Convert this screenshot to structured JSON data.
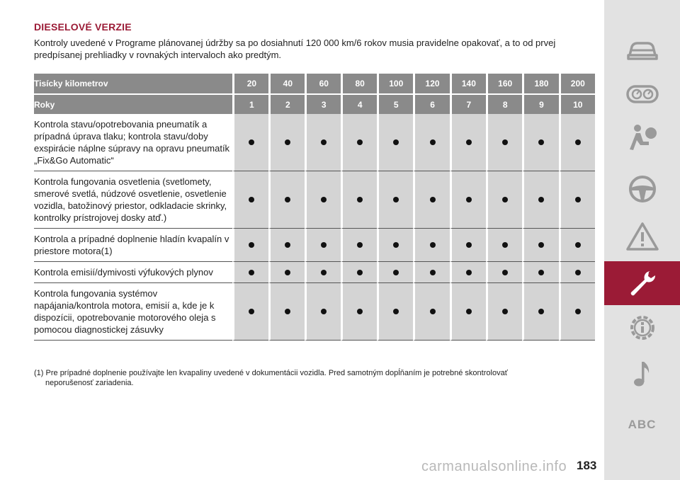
{
  "section_title": "DIESELOVÉ VERZIE",
  "intro_text": "Kontroly uvedené v Programe plánovanej údržby sa po dosiahnutí 120 000 km/6 rokov musia pravidelne opakovať, a to od prvej predpísanej prehliadky v rovnakých intervaloch ako predtým.",
  "table": {
    "header_km_label": "Tisícky kilometrov",
    "km": [
      "20",
      "40",
      "60",
      "80",
      "100",
      "120",
      "140",
      "160",
      "180",
      "200"
    ],
    "header_years_label": "Roky",
    "years": [
      "1",
      "2",
      "3",
      "4",
      "5",
      "6",
      "7",
      "8",
      "9",
      "10"
    ],
    "rows": [
      {
        "label": "Kontrola stavu/opotrebovania pneumatík a prípadná úprava tlaku; kontrola stavu/doby exspirácie náplne súpravy na opravu pneumatík „Fix&Go Automatic“",
        "marks": [
          true,
          true,
          true,
          true,
          true,
          true,
          true,
          true,
          true,
          true
        ]
      },
      {
        "label": "Kontrola fungovania osvetlenia (svetlomety, smerové svetlá, núdzové osvetlenie, osvetlenie vozidla, batožinový priestor, odkladacie skrinky, kontrolky prístrojovej dosky atď.)",
        "marks": [
          true,
          true,
          true,
          true,
          true,
          true,
          true,
          true,
          true,
          true
        ]
      },
      {
        "label": "Kontrola a prípadné doplnenie hladín kvapalín v priestore motora(1)",
        "marks": [
          true,
          true,
          true,
          true,
          true,
          true,
          true,
          true,
          true,
          true
        ]
      },
      {
        "label": "Kontrola emisií/dymivosti výfukových plynov",
        "marks": [
          true,
          true,
          true,
          true,
          true,
          true,
          true,
          true,
          true,
          true
        ]
      },
      {
        "label": "Kontrola fungovania systémov napájania/kontrola motora, emisií a, kde je k dispozícii, opotrebovanie motorového oleja s pomocou diagnostickej zásuvky",
        "marks": [
          true,
          true,
          true,
          true,
          true,
          true,
          true,
          true,
          true,
          true
        ]
      }
    ]
  },
  "footnote_marker": "(1)",
  "footnote_line1": "Pre prípadné doplnenie používajte len kvapaliny uvedené v dokumentácii vozidla. Pred samotným dopĺňaním je potrebné skontrolovať",
  "footnote_line2": "neporušenosť zariadenia.",
  "sidebar": {
    "items": [
      "car-icon",
      "dashboard-icon",
      "airbag-icon",
      "steering-wheel-icon",
      "warning-triangle-icon",
      "wrench-icon",
      "gear-info-icon",
      "music-note-icon"
    ],
    "active": "wrench-icon",
    "abc_label": "ABC"
  },
  "page_number": "183",
  "watermark": "carmanualsonline.info",
  "colors": {
    "accent": "#9b1b36",
    "header_gray": "#8a8a8a",
    "cell_gray": "#d4d4d4",
    "sidebar_bg": "#e2e2e2",
    "icon_gray": "#9a9a9a"
  }
}
